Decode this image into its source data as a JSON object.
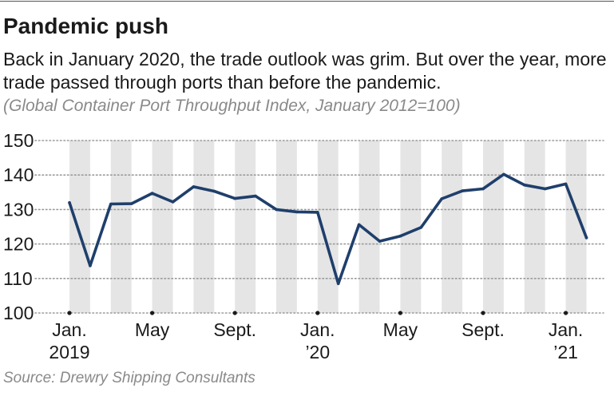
{
  "title": "Pandemic push",
  "subtitle": "Back in January 2020, the trade outlook was grim. But over the year, more trade passed through ports than before the pandemic.",
  "note": "(Global Container Port Throughput Index, January 2012=100)",
  "source": "Source: Drewry Shipping Consultants",
  "colors": {
    "line": "#1f3f6b",
    "band": "#e5e5e5",
    "grid": "#9a9a9a",
    "text": "#1a1a1a",
    "muted": "#8a8a8a"
  },
  "chart_data": {
    "type": "line",
    "title": "Pandemic push",
    "xlabel": "",
    "ylabel": "",
    "ylim": [
      100,
      150
    ],
    "yticks": [
      100,
      110,
      120,
      130,
      140,
      150
    ],
    "grid": true,
    "x": [
      "2019-01",
      "2019-02",
      "2019-03",
      "2019-04",
      "2019-05",
      "2019-06",
      "2019-07",
      "2019-08",
      "2019-09",
      "2019-10",
      "2019-11",
      "2019-12",
      "2020-01",
      "2020-02",
      "2020-03",
      "2020-04",
      "2020-05",
      "2020-06",
      "2020-07",
      "2020-08",
      "2020-09",
      "2020-10",
      "2020-11",
      "2020-12",
      "2021-01",
      "2021-02"
    ],
    "series": [
      {
        "values": [
          132.0,
          113.7,
          131.6,
          131.7,
          134.7,
          132.2,
          136.6,
          135.3,
          133.2,
          133.9,
          130.0,
          129.3,
          129.2,
          108.5,
          125.6,
          120.8,
          122.3,
          124.8,
          133.1,
          135.4,
          136.0,
          140.2,
          137.1,
          136.0,
          137.4,
          121.8
        ]
      }
    ],
    "xtick_labels": [
      {
        "x": "2019-01",
        "line1": "Jan.",
        "line2": "2019"
      },
      {
        "x": "2019-05",
        "line1": "May",
        "line2": ""
      },
      {
        "x": "2019-09",
        "line1": "Sept.",
        "line2": ""
      },
      {
        "x": "2020-01",
        "line1": "Jan.",
        "line2": "’20"
      },
      {
        "x": "2020-05",
        "line1": "May",
        "line2": ""
      },
      {
        "x": "2020-09",
        "line1": "Sept.",
        "line2": ""
      },
      {
        "x": "2021-01",
        "line1": "Jan.",
        "line2": "’21"
      }
    ]
  }
}
